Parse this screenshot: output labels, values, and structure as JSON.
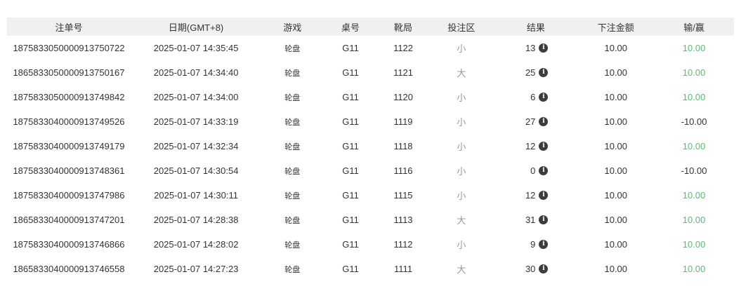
{
  "table": {
    "columns": [
      {
        "key": "id",
        "name": "col-header-bet-id",
        "label": "注单号"
      },
      {
        "key": "date",
        "name": "col-header-date",
        "label": "日期(GMT+8)"
      },
      {
        "key": "game",
        "name": "col-header-game",
        "label": "游戏"
      },
      {
        "key": "table_no",
        "name": "col-header-table-no",
        "label": "桌号"
      },
      {
        "key": "shoe",
        "name": "col-header-shoe-round",
        "label": "靴局"
      },
      {
        "key": "bet_area",
        "name": "col-header-bet-area",
        "label": "投注区"
      },
      {
        "key": "result",
        "name": "col-header-result",
        "label": "结果"
      },
      {
        "key": "amount",
        "name": "col-header-bet-amount",
        "label": "下注金额"
      },
      {
        "key": "win_loss",
        "name": "col-header-win-loss",
        "label": "输/赢"
      }
    ],
    "rows": [
      {
        "id": "1875833050000913750722",
        "date": "2025-01-07 14:35:45",
        "game": "轮盘",
        "table_no": "G11",
        "shoe": "1122",
        "bet_area": "小",
        "result": "13",
        "amount": "10.00",
        "win_loss": "10.00",
        "win": true
      },
      {
        "id": "1865833050000913750167",
        "date": "2025-01-07 14:34:40",
        "game": "轮盘",
        "table_no": "G11",
        "shoe": "1121",
        "bet_area": "大",
        "result": "25",
        "amount": "10.00",
        "win_loss": "10.00",
        "win": true
      },
      {
        "id": "1875833050000913749842",
        "date": "2025-01-07 14:34:00",
        "game": "轮盘",
        "table_no": "G11",
        "shoe": "1120",
        "bet_area": "小",
        "result": "6",
        "amount": "10.00",
        "win_loss": "10.00",
        "win": true
      },
      {
        "id": "1875833040000913749526",
        "date": "2025-01-07 14:33:19",
        "game": "轮盘",
        "table_no": "G11",
        "shoe": "1119",
        "bet_area": "小",
        "result": "27",
        "amount": "10.00",
        "win_loss": "-10.00",
        "win": false
      },
      {
        "id": "1875833040000913749179",
        "date": "2025-01-07 14:32:34",
        "game": "轮盘",
        "table_no": "G11",
        "shoe": "1118",
        "bet_area": "小",
        "result": "12",
        "amount": "10.00",
        "win_loss": "10.00",
        "win": true
      },
      {
        "id": "1875833040000913748361",
        "date": "2025-01-07 14:30:54",
        "game": "轮盘",
        "table_no": "G11",
        "shoe": "1116",
        "bet_area": "小",
        "result": "0",
        "amount": "10.00",
        "win_loss": "-10.00",
        "win": false
      },
      {
        "id": "1875833040000913747986",
        "date": "2025-01-07 14:30:11",
        "game": "轮盘",
        "table_no": "G11",
        "shoe": "1115",
        "bet_area": "小",
        "result": "12",
        "amount": "10.00",
        "win_loss": "10.00",
        "win": true
      },
      {
        "id": "1865833040000913747201",
        "date": "2025-01-07 14:28:38",
        "game": "轮盘",
        "table_no": "G11",
        "shoe": "1113",
        "bet_area": "大",
        "result": "31",
        "amount": "10.00",
        "win_loss": "10.00",
        "win": true
      },
      {
        "id": "1875833040000913746866",
        "date": "2025-01-07 14:28:02",
        "game": "轮盘",
        "table_no": "G11",
        "shoe": "1112",
        "bet_area": "小",
        "result": "9",
        "amount": "10.00",
        "win_loss": "10.00",
        "win": true
      },
      {
        "id": "1865833040000913746558",
        "date": "2025-01-07 14:27:23",
        "game": "轮盘",
        "table_no": "G11",
        "shoe": "1111",
        "bet_area": "大",
        "result": "30",
        "amount": "10.00",
        "win_loss": "10.00",
        "win": true
      }
    ],
    "icons": {
      "result_icon": "info-icon",
      "result_icon_glyph": "i"
    },
    "colors": {
      "win": "#5FB878",
      "loss": "#333333",
      "text": "#333333",
      "muted": "#999999",
      "header_bg": "#f0f0f0"
    }
  }
}
